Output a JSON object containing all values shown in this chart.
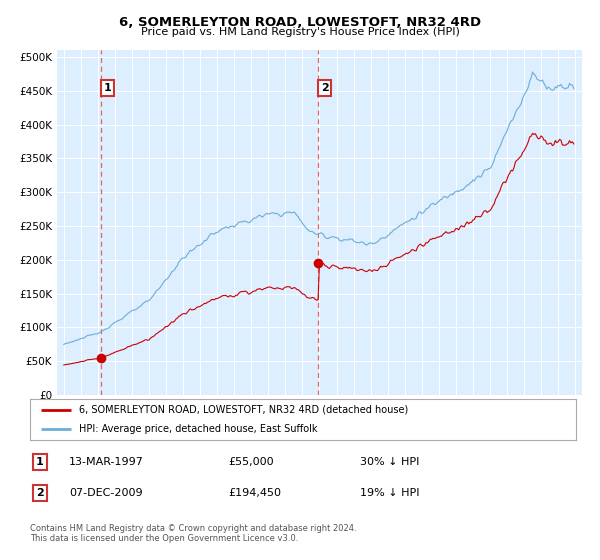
{
  "title": "6, SOMERLEYTON ROAD, LOWESTOFT, NR32 4RD",
  "subtitle": "Price paid vs. HM Land Registry's House Price Index (HPI)",
  "plot_background": "#ddeeff",
  "sale1_date_num": 1997.2,
  "sale1_price": 55000,
  "sale2_date_num": 2009.93,
  "sale2_price": 194450,
  "legend_entry1": "6, SOMERLEYTON ROAD, LOWESTOFT, NR32 4RD (detached house)",
  "legend_entry2": "HPI: Average price, detached house, East Suffolk",
  "table_row1": [
    "1",
    "13-MAR-1997",
    "£55,000",
    "30% ↓ HPI"
  ],
  "table_row2": [
    "2",
    "07-DEC-2009",
    "£194,450",
    "19% ↓ HPI"
  ],
  "footnote": "Contains HM Land Registry data © Crown copyright and database right 2024.\nThis data is licensed under the Open Government Licence v3.0.",
  "hpi_color": "#6baed6",
  "sale_color": "#cc0000",
  "vline_color": "#dd6666",
  "grid_color": "#ffffff",
  "xlim_start": 1994.6,
  "xlim_end": 2025.4
}
